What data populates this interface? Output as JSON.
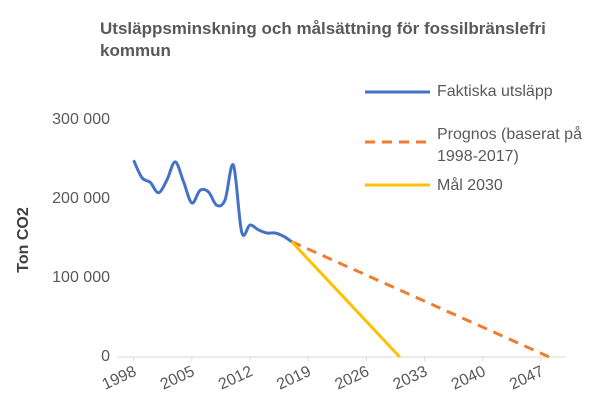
{
  "chart_data": {
    "type": "line",
    "title": "Utsläppsminskning och målsättning för fossilbränslefri kommun",
    "y_label": "Ton CO2",
    "xlim": [
      1996,
      2050
    ],
    "xticks": [
      1998,
      2005,
      2012,
      2019,
      2026,
      2033,
      2040,
      2047
    ],
    "ylim": [
      0,
      300000
    ],
    "yticks": [
      0,
      {
        "value": 100000,
        "label": "100 000"
      },
      {
        "value": 200000,
        "label": "200 000"
      },
      {
        "value": 300000,
        "label": "300 000"
      }
    ],
    "grid": false,
    "legend": "right",
    "series": [
      {
        "name": "Faktiska utsläpp",
        "color": "#4472c4",
        "dash": false,
        "smooth": true,
        "x": [
          1998,
          1999,
          2000,
          2001,
          2002,
          2003,
          2004,
          2005,
          2006,
          2007,
          2008,
          2009,
          2010,
          2011,
          2012,
          2013,
          2014,
          2015,
          2016,
          2017
        ],
        "values": [
          249000,
          227000,
          221000,
          208000,
          224000,
          247000,
          222000,
          195000,
          211000,
          209000,
          192000,
          199000,
          243000,
          158000,
          167000,
          161000,
          157000,
          157000,
          153000,
          146000
        ]
      },
      {
        "name": "Prognos (baserat på 1998-2017)",
        "color": "#ed7d31",
        "dash": true,
        "smooth": false,
        "x": [
          2017,
          2048
        ],
        "values": [
          146000,
          0
        ]
      },
      {
        "name": "Mål 2030",
        "color": "#ffc000",
        "dash": false,
        "smooth": false,
        "x": [
          2017,
          2030
        ],
        "values": [
          146000,
          0
        ]
      }
    ]
  }
}
